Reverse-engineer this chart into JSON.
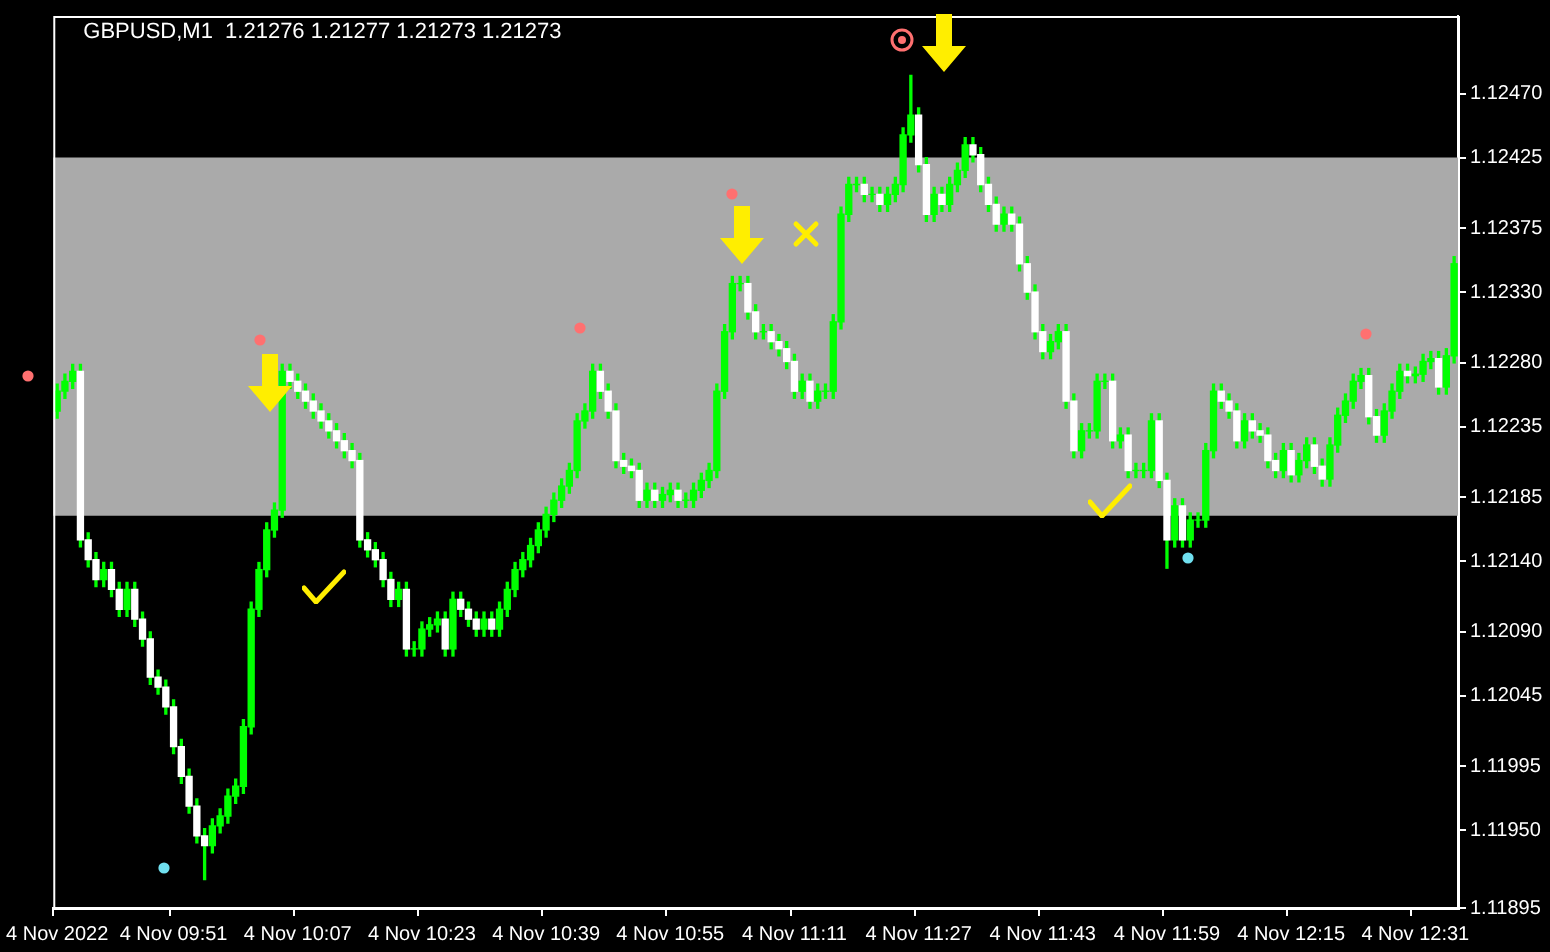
{
  "chart_data": {
    "type": "candlestick",
    "title": "GBPUSD,M1  1.21276 1.21277 1.21273 1.21273",
    "color": "#00ff00",
    "categories": [
      "4 Nov 2022",
      null,
      null,
      null,
      null,
      null,
      null,
      null,
      null,
      null,
      null,
      null,
      null,
      null,
      null,
      "4 Nov 09:51",
      null,
      null,
      null,
      null,
      null,
      null,
      null,
      null,
      null,
      null,
      null,
      null,
      null,
      null,
      null,
      "4 Nov 10:07",
      null,
      null,
      null,
      null,
      null,
      null,
      null,
      null,
      null,
      null,
      null,
      null,
      null,
      null,
      null,
      "4 Nov 10:23",
      null,
      null,
      null,
      null,
      null,
      null,
      null,
      null,
      null,
      null,
      null,
      null,
      null,
      null,
      null,
      "4 Nov 10:39",
      null,
      null,
      null,
      null,
      null,
      null,
      null,
      null,
      null,
      null,
      null,
      null,
      null,
      null,
      null,
      "4 Nov 10:55",
      null,
      null,
      null,
      null,
      null,
      null,
      null,
      null,
      null,
      null,
      null,
      null,
      null,
      null,
      null,
      "4 Nov 11:11",
      null,
      null,
      null,
      null,
      null,
      null,
      null,
      null,
      null,
      null,
      null,
      null,
      null,
      null,
      null,
      "4 Nov 11:27",
      null,
      null,
      null,
      null,
      null,
      null,
      null,
      null,
      null,
      null,
      null,
      null,
      null,
      null,
      null,
      "4 Nov 11:43",
      null,
      null,
      null,
      null,
      null,
      null,
      null,
      null,
      null,
      null,
      null,
      null,
      null,
      null,
      null,
      "4 Nov 11:59",
      null,
      null,
      null,
      null,
      null,
      null,
      null,
      null,
      null,
      null,
      null,
      null,
      null,
      null,
      null,
      "4 Nov 12:15",
      null,
      null,
      null,
      null,
      null,
      null,
      null,
      null,
      null,
      null,
      null,
      null,
      null,
      null,
      null,
      "4 Nov 12:31",
      null,
      null,
      null,
      null,
      null
    ],
    "ohlc": [
      [
        1.12246,
        1.12265,
        1.12241,
        1.1226
      ],
      [
        1.1226,
        1.12272,
        1.12255,
        1.12267
      ],
      [
        1.12267,
        1.12279,
        1.12262,
        1.12274
      ],
      [
        1.12274,
        1.12279,
        1.1215,
        1.12155
      ],
      [
        1.12155,
        1.1216,
        1.12136,
        1.12141
      ],
      [
        1.12141,
        1.12146,
        1.12122,
        1.12127
      ],
      [
        1.12127,
        1.12139,
        1.12122,
        1.12134
      ],
      [
        1.12134,
        1.12139,
        1.12115,
        1.1212
      ],
      [
        1.1212,
        1.12125,
        1.12101,
        1.12106
      ],
      [
        1.12106,
        1.12125,
        1.12101,
        1.1212
      ],
      [
        1.1212,
        1.12125,
        1.12094,
        1.12099
      ],
      [
        1.12099,
        1.12104,
        1.1208,
        1.12085
      ],
      [
        1.12085,
        1.1209,
        1.12053,
        1.12058
      ],
      [
        1.12058,
        1.12063,
        1.12046,
        1.12051
      ],
      [
        1.12051,
        1.12056,
        1.12032,
        1.12037
      ],
      [
        1.12037,
        1.12042,
        1.12004,
        1.12009
      ],
      [
        1.12009,
        1.12014,
        1.11983,
        1.11988
      ],
      [
        1.11988,
        1.11993,
        1.11962,
        1.11967
      ],
      [
        1.11967,
        1.11972,
        1.11941,
        1.11946
      ],
      [
        1.11946,
        1.11951,
        1.11915,
        1.11939
      ],
      [
        1.11939,
        1.11958,
        1.11934,
        1.11953
      ],
      [
        1.11953,
        1.11965,
        1.11948,
        1.1196
      ],
      [
        1.1196,
        1.11979,
        1.11955,
        1.11974
      ],
      [
        1.11974,
        1.11986,
        1.11969,
        1.11981
      ],
      [
        1.11981,
        1.12028,
        1.11976,
        1.12023
      ],
      [
        1.12023,
        1.12111,
        1.12018,
        1.12106
      ],
      [
        1.12106,
        1.12139,
        1.12101,
        1.12134
      ],
      [
        1.12134,
        1.12167,
        1.12129,
        1.12162
      ],
      [
        1.12162,
        1.12181,
        1.12157,
        1.12176
      ],
      [
        1.12176,
        1.12279,
        1.12171,
        1.12274
      ],
      [
        1.12274,
        1.12279,
        1.12262,
        1.12267
      ],
      [
        1.12267,
        1.12272,
        1.12255,
        1.1226
      ],
      [
        1.1226,
        1.12265,
        1.12248,
        1.12253
      ],
      [
        1.12253,
        1.12258,
        1.12241,
        1.12246
      ],
      [
        1.12246,
        1.12251,
        1.12234,
        1.12239
      ],
      [
        1.12239,
        1.12244,
        1.12227,
        1.12232
      ],
      [
        1.12232,
        1.12237,
        1.1222,
        1.12225
      ],
      [
        1.12225,
        1.1223,
        1.12213,
        1.12218
      ],
      [
        1.12218,
        1.12223,
        1.12206,
        1.12211
      ],
      [
        1.12211,
        1.12216,
        1.1215,
        1.12155
      ],
      [
        1.12155,
        1.1216,
        1.12143,
        1.12148
      ],
      [
        1.12148,
        1.12153,
        1.12136,
        1.12141
      ],
      [
        1.12141,
        1.12146,
        1.12122,
        1.12127
      ],
      [
        1.12127,
        1.12132,
        1.12108,
        1.12113
      ],
      [
        1.12113,
        1.12125,
        1.12108,
        1.1212
      ],
      [
        1.1212,
        1.12125,
        1.12073,
        1.12078
      ],
      [
        1.12078,
        1.12083,
        1.12073,
        1.12078
      ],
      [
        1.12078,
        1.12097,
        1.12073,
        1.12092
      ],
      [
        1.12092,
        1.121,
        1.12087,
        1.12095
      ],
      [
        1.12095,
        1.12104,
        1.1209,
        1.12099
      ],
      [
        1.12099,
        1.12104,
        1.12073,
        1.12078
      ],
      [
        1.12078,
        1.12118,
        1.12073,
        1.12113
      ],
      [
        1.12113,
        1.12118,
        1.12101,
        1.12106
      ],
      [
        1.12106,
        1.12111,
        1.12094,
        1.12099
      ],
      [
        1.12099,
        1.12104,
        1.12087,
        1.12092
      ],
      [
        1.12092,
        1.12104,
        1.12087,
        1.12099
      ],
      [
        1.12099,
        1.12104,
        1.12087,
        1.12092
      ],
      [
        1.12092,
        1.12111,
        1.12087,
        1.12106
      ],
      [
        1.12106,
        1.12125,
        1.12101,
        1.1212
      ],
      [
        1.1212,
        1.12139,
        1.12115,
        1.12134
      ],
      [
        1.12134,
        1.12146,
        1.12129,
        1.12141
      ],
      [
        1.12141,
        1.12156,
        1.12136,
        1.12151
      ],
      [
        1.12151,
        1.12167,
        1.12146,
        1.12162
      ],
      [
        1.12162,
        1.12178,
        1.12157,
        1.12173
      ],
      [
        1.12173,
        1.12188,
        1.12168,
        1.12183
      ],
      [
        1.12183,
        1.12198,
        1.12178,
        1.12193
      ],
      [
        1.12193,
        1.12209,
        1.12188,
        1.12204
      ],
      [
        1.12204,
        1.12244,
        1.12199,
        1.12239
      ],
      [
        1.12239,
        1.12251,
        1.12234,
        1.12246
      ],
      [
        1.12246,
        1.12279,
        1.12241,
        1.12274
      ],
      [
        1.12274,
        1.12279,
        1.12255,
        1.1226
      ],
      [
        1.1226,
        1.12265,
        1.12241,
        1.12246
      ],
      [
        1.12246,
        1.12251,
        1.12206,
        1.12211
      ],
      [
        1.12211,
        1.12216,
        1.12202,
        1.12207
      ],
      [
        1.12207,
        1.12212,
        1.12199,
        1.12204
      ],
      [
        1.12204,
        1.12209,
        1.12178,
        1.12183
      ],
      [
        1.12183,
        1.12195,
        1.12178,
        1.1219
      ],
      [
        1.1219,
        1.12195,
        1.12178,
        1.12183
      ],
      [
        1.12183,
        1.12192,
        1.12178,
        1.12187
      ],
      [
        1.12187,
        1.12195,
        1.12182,
        1.1219
      ],
      [
        1.1219,
        1.12195,
        1.12178,
        1.12183
      ],
      [
        1.12183,
        1.12188,
        1.12178,
        1.12183
      ],
      [
        1.12183,
        1.12195,
        1.12178,
        1.1219
      ],
      [
        1.1219,
        1.12202,
        1.12185,
        1.12197
      ],
      [
        1.12197,
        1.12209,
        1.12192,
        1.12204
      ],
      [
        1.12204,
        1.12265,
        1.12199,
        1.1226
      ],
      [
        1.1226,
        1.12307,
        1.12255,
        1.12302
      ],
      [
        1.12302,
        1.12341,
        1.12297,
        1.12336
      ],
      [
        1.12336,
        1.12341,
        1.12331,
        1.12336
      ],
      [
        1.12336,
        1.12341,
        1.12311,
        1.12316
      ],
      [
        1.12316,
        1.12321,
        1.12297,
        1.12302
      ],
      [
        1.12302,
        1.12307,
        1.12297,
        1.12302
      ],
      [
        1.12302,
        1.12307,
        1.1229,
        1.12295
      ],
      [
        1.12295,
        1.123,
        1.12285,
        1.1229
      ],
      [
        1.1229,
        1.12295,
        1.12276,
        1.12281
      ],
      [
        1.12281,
        1.12286,
        1.12255,
        1.1226
      ],
      [
        1.1226,
        1.12272,
        1.12255,
        1.12267
      ],
      [
        1.12267,
        1.12272,
        1.12248,
        1.12253
      ],
      [
        1.12253,
        1.12265,
        1.12248,
        1.1226
      ],
      [
        1.1226,
        1.12265,
        1.12255,
        1.1226
      ],
      [
        1.1226,
        1.12314,
        1.12255,
        1.12309
      ],
      [
        1.12309,
        1.1239,
        1.12304,
        1.12385
      ],
      [
        1.12385,
        1.12411,
        1.1238,
        1.12406
      ],
      [
        1.12406,
        1.12411,
        1.12401,
        1.12406
      ],
      [
        1.12406,
        1.12411,
        1.12394,
        1.12399
      ],
      [
        1.12399,
        1.12404,
        1.12394,
        1.12399
      ],
      [
        1.12399,
        1.12404,
        1.12387,
        1.12392
      ],
      [
        1.12392,
        1.12404,
        1.12387,
        1.12399
      ],
      [
        1.12399,
        1.12411,
        1.12394,
        1.12406
      ],
      [
        1.12406,
        1.12446,
        1.12401,
        1.12441
      ],
      [
        1.12441,
        1.12483,
        1.12436,
        1.12455
      ],
      [
        1.12455,
        1.1246,
        1.12415,
        1.1242
      ],
      [
        1.1242,
        1.12425,
        1.1238,
        1.12385
      ],
      [
        1.12385,
        1.12404,
        1.1238,
        1.12399
      ],
      [
        1.12399,
        1.12404,
        1.12387,
        1.12392
      ],
      [
        1.12392,
        1.12411,
        1.12387,
        1.12406
      ],
      [
        1.12406,
        1.12421,
        1.12401,
        1.12416
      ],
      [
        1.12416,
        1.12439,
        1.12411,
        1.12434
      ],
      [
        1.12434,
        1.12439,
        1.12422,
        1.12427
      ],
      [
        1.12427,
        1.12432,
        1.12401,
        1.12406
      ],
      [
        1.12406,
        1.12411,
        1.12387,
        1.12392
      ],
      [
        1.12392,
        1.12397,
        1.12373,
        1.12378
      ],
      [
        1.12378,
        1.1239,
        1.12373,
        1.12385
      ],
      [
        1.12385,
        1.1239,
        1.12373,
        1.12378
      ],
      [
        1.12378,
        1.12383,
        1.12345,
        1.1235
      ],
      [
        1.1235,
        1.12355,
        1.12325,
        1.1233
      ],
      [
        1.1233,
        1.12335,
        1.12297,
        1.12302
      ],
      [
        1.12302,
        1.12307,
        1.12283,
        1.12288
      ],
      [
        1.12288,
        1.123,
        1.12283,
        1.12295
      ],
      [
        1.12295,
        1.12307,
        1.1229,
        1.12302
      ],
      [
        1.12302,
        1.12307,
        1.12248,
        1.12253
      ],
      [
        1.12253,
        1.12258,
        1.12213,
        1.12218
      ],
      [
        1.12218,
        1.12237,
        1.12213,
        1.12232
      ],
      [
        1.12232,
        1.12237,
        1.12227,
        1.12232
      ],
      [
        1.12232,
        1.12272,
        1.12227,
        1.12267
      ],
      [
        1.12267,
        1.12272,
        1.12262,
        1.12267
      ],
      [
        1.12267,
        1.12272,
        1.1222,
        1.12225
      ],
      [
        1.12225,
        1.12234,
        1.1222,
        1.12229
      ],
      [
        1.12229,
        1.12234,
        1.12199,
        1.12204
      ],
      [
        1.12204,
        1.12209,
        1.12199,
        1.12204
      ],
      [
        1.12204,
        1.12209,
        1.12199,
        1.12204
      ],
      [
        1.12204,
        1.12244,
        1.12199,
        1.12239
      ],
      [
        1.12239,
        1.12244,
        1.12192,
        1.12197
      ],
      [
        1.12197,
        1.12202,
        1.12135,
        1.12155
      ],
      [
        1.12155,
        1.12184,
        1.1215,
        1.12179
      ],
      [
        1.12179,
        1.12184,
        1.1215,
        1.12155
      ],
      [
        1.12155,
        1.12174,
        1.1215,
        1.12169
      ],
      [
        1.12169,
        1.12174,
        1.12164,
        1.12169
      ],
      [
        1.12169,
        1.12223,
        1.12164,
        1.12218
      ],
      [
        1.12218,
        1.12265,
        1.12213,
        1.1226
      ],
      [
        1.1226,
        1.12265,
        1.12248,
        1.12253
      ],
      [
        1.12253,
        1.12258,
        1.12241,
        1.12246
      ],
      [
        1.12246,
        1.12251,
        1.1222,
        1.12225
      ],
      [
        1.12225,
        1.12244,
        1.1222,
        1.12239
      ],
      [
        1.12239,
        1.12244,
        1.12227,
        1.12232
      ],
      [
        1.12232,
        1.12237,
        1.12224,
        1.12229
      ],
      [
        1.12229,
        1.12234,
        1.12206,
        1.12211
      ],
      [
        1.12211,
        1.12216,
        1.12199,
        1.12204
      ],
      [
        1.12204,
        1.12223,
        1.12199,
        1.12218
      ],
      [
        1.12218,
        1.12223,
        1.12196,
        1.12201
      ],
      [
        1.12201,
        1.12216,
        1.12196,
        1.12211
      ],
      [
        1.12211,
        1.12227,
        1.12206,
        1.12222
      ],
      [
        1.12222,
        1.12227,
        1.12202,
        1.12207
      ],
      [
        1.12207,
        1.12212,
        1.12193,
        1.12198
      ],
      [
        1.12198,
        1.12227,
        1.12193,
        1.12222
      ],
      [
        1.12222,
        1.12248,
        1.12217,
        1.12243
      ],
      [
        1.12243,
        1.12258,
        1.12238,
        1.12253
      ],
      [
        1.12253,
        1.12272,
        1.12248,
        1.12267
      ],
      [
        1.12267,
        1.12276,
        1.12262,
        1.12271
      ],
      [
        1.12271,
        1.12276,
        1.12237,
        1.12242
      ],
      [
        1.12242,
        1.12247,
        1.12224,
        1.12229
      ],
      [
        1.12229,
        1.12251,
        1.12224,
        1.12246
      ],
      [
        1.12246,
        1.12265,
        1.12241,
        1.1226
      ],
      [
        1.1226,
        1.12279,
        1.12255,
        1.12274
      ],
      [
        1.12274,
        1.12279,
        1.12266,
        1.12271
      ],
      [
        1.12271,
        1.12277,
        1.12266,
        1.12272
      ],
      [
        1.12272,
        1.12286,
        1.12267,
        1.12281
      ],
      [
        1.12281,
        1.12288,
        1.12276,
        1.12283
      ],
      [
        1.12283,
        1.12288,
        1.12258,
        1.12263
      ],
      [
        1.12263,
        1.1229,
        1.12258,
        1.12285
      ],
      [
        1.12285,
        1.12355,
        1.1228,
        1.1235
      ]
    ],
    "colors": [
      "#00ff00",
      "#00ff00",
      "#00ff00",
      "#ffffff",
      "#ffffff",
      "#ffffff",
      "#00ff00",
      "#ffffff",
      "#ffffff",
      "#00ff00",
      "#ffffff",
      "#ffffff",
      "#ffffff",
      "#ffffff",
      "#ffffff",
      "#ffffff",
      "#ffffff",
      "#ffffff",
      "#ffffff",
      "#ffffff",
      "#00ff00",
      "#00ff00",
      "#00ff00",
      "#00ff00",
      "#00ff00",
      "#00ff00",
      "#00ff00",
      "#00ff00",
      "#00ff00",
      "#00ff00",
      "#ffffff",
      "#ffffff",
      "#ffffff",
      "#ffffff",
      "#ffffff",
      "#ffffff",
      "#ffffff",
      "#ffffff",
      "#ffffff",
      "#ffffff",
      "#ffffff",
      "#ffffff",
      "#ffffff",
      "#ffffff",
      "#00ff00",
      "#ffffff",
      "#00ff00",
      "#00ff00",
      "#00ff00",
      "#00ff00",
      "#ffffff",
      "#00ff00",
      "#ffffff",
      "#ffffff",
      "#ffffff",
      "#00ff00",
      "#ffffff",
      "#00ff00",
      "#00ff00",
      "#00ff00",
      "#00ff00",
      "#00ff00",
      "#00ff00",
      "#00ff00",
      "#00ff00",
      "#00ff00",
      "#00ff00",
      "#00ff00",
      "#00ff00",
      "#00ff00",
      "#ffffff",
      "#ffffff",
      "#ffffff",
      "#ffffff",
      "#ffffff",
      "#ffffff",
      "#00ff00",
      "#ffffff",
      "#00ff00",
      "#00ff00",
      "#ffffff",
      "#00ff00",
      "#00ff00",
      "#00ff00",
      "#00ff00",
      "#00ff00",
      "#00ff00",
      "#00ff00",
      "#00ff00",
      "#ffffff",
      "#ffffff",
      "#00ff00",
      "#ffffff",
      "#ffffff",
      "#ffffff",
      "#ffffff",
      "#00ff00",
      "#ffffff",
      "#00ff00",
      "#00ff00",
      "#00ff00",
      "#00ff00",
      "#00ff00",
      "#00ff00",
      "#ffffff",
      "#00ff00",
      "#ffffff",
      "#00ff00",
      "#00ff00",
      "#00ff00",
      "#00ff00",
      "#ffffff",
      "#ffffff",
      "#00ff00",
      "#ffffff",
      "#00ff00",
      "#00ff00",
      "#00ff00",
      "#ffffff",
      "#ffffff",
      "#ffffff",
      "#ffffff",
      "#00ff00",
      "#ffffff",
      "#ffffff",
      "#ffffff",
      "#ffffff",
      "#ffffff",
      "#00ff00",
      "#00ff00",
      "#ffffff",
      "#ffffff",
      "#00ff00",
      "#00ff00",
      "#00ff00",
      "#00ff00",
      "#ffffff",
      "#00ff00",
      "#ffffff",
      "#00ff00",
      "#00ff00",
      "#00ff00",
      "#ffffff",
      "#ffffff",
      "#00ff00",
      "#ffffff",
      "#00ff00",
      "#00ff00",
      "#00ff00",
      "#00ff00",
      "#ffffff",
      "#ffffff",
      "#ffffff",
      "#00ff00",
      "#ffffff",
      "#ffffff",
      "#ffffff",
      "#ffffff",
      "#00ff00",
      "#ffffff",
      "#00ff00",
      "#00ff00",
      "#ffffff",
      "#ffffff",
      "#00ff00",
      "#00ff00",
      "#00ff00",
      "#00ff00",
      "#00ff00",
      "#ffffff",
      "#ffffff",
      "#00ff00",
      "#00ff00",
      "#00ff00",
      "#ffffff",
      "#00ff00",
      "#00ff00",
      "#00ff00",
      "#ffffff",
      "#00ff00",
      "#00ff00"
    ],
    "ylim": [
      1.11895,
      1.12525
    ],
    "yticks": [
      1.11895,
      {
        "value": 1.1195,
        "label": "1.11950"
      },
      1.11995,
      1.12045,
      {
        "value": 1.1209,
        "label": "1.12090"
      },
      {
        "value": 1.1214,
        "label": "1.12140"
      },
      1.12185,
      1.12235,
      {
        "value": 1.1228,
        "label": "1.12280"
      },
      {
        "value": 1.1233,
        "label": "1.12330"
      },
      1.12375,
      1.12425,
      {
        "value": 1.1247,
        "label": "1.12470"
      }
    ],
    "bands": [
      {
        "axis": "y",
        "from": 1.12172,
        "to": 1.12425,
        "color": "#aaaaaa"
      }
    ]
  }
}
